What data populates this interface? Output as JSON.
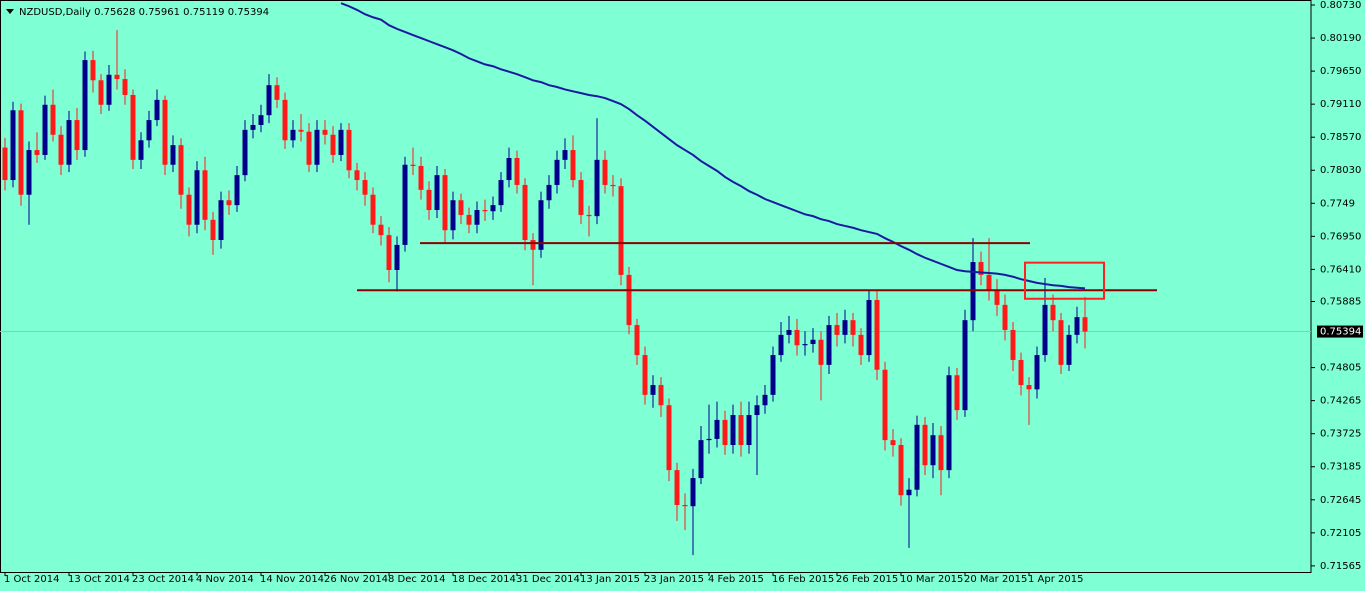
{
  "chart_data": {
    "type": "candlestick",
    "title": "NZDUSD,Daily",
    "background": "#7fffd4",
    "up_color": "#00008b",
    "down_color": "#ff1a1a",
    "categories": [
      "1 Oct 2014",
      null,
      null,
      null,
      null,
      null,
      null,
      null,
      "13 Oct 2014",
      null,
      null,
      null,
      null,
      null,
      null,
      null,
      "23 Oct 2014",
      null,
      null,
      null,
      null,
      null,
      null,
      null,
      "4 Nov 2014",
      null,
      null,
      null,
      null,
      null,
      null,
      null,
      "14 Nov 2014",
      null,
      null,
      null,
      null,
      null,
      null,
      null,
      "26 Nov 2014",
      null,
      null,
      null,
      null,
      null,
      null,
      null,
      "8 Dec 2014",
      null,
      null,
      null,
      null,
      null,
      null,
      null,
      "18 Dec 2014",
      null,
      null,
      null,
      null,
      null,
      null,
      null,
      "31 Dec 2014",
      null,
      null,
      null,
      null,
      null,
      null,
      null,
      "13 Jan 2015",
      null,
      null,
      null,
      null,
      null,
      null,
      null,
      "23 Jan 2015",
      null,
      null,
      null,
      null,
      null,
      null,
      null,
      "4 Feb 2015",
      null,
      null,
      null,
      null,
      null,
      null,
      null,
      "16 Feb 2015",
      null,
      null,
      null,
      null,
      null,
      null,
      null,
      "26 Feb 2015",
      null,
      null,
      null,
      null,
      null,
      null,
      null,
      "10 Mar 2015",
      null,
      null,
      null,
      null,
      null,
      null,
      null,
      "20 Mar 2015",
      null,
      null,
      null,
      null,
      null,
      null,
      null,
      "1 Apr 2015",
      null,
      null,
      null,
      null,
      null,
      null,
      null
    ],
    "open": [
      0.784,
      0.7787,
      0.7901,
      0.7763,
      0.7836,
      0.7828,
      0.791,
      0.7861,
      0.7812,
      0.7885,
      0.7836,
      0.7983,
      0.795,
      0.791,
      0.7959,
      0.7952,
      0.7926,
      0.782,
      0.7852,
      0.7885,
      0.7918,
      0.7812,
      0.7844,
      0.7763,
      0.7714,
      0.7803,
      0.7722,
      0.7689,
      0.7754,
      0.7746,
      0.7795,
      0.7869,
      0.7877,
      0.7893,
      0.7942,
      0.7918,
      0.7852,
      0.7869,
      0.7866,
      0.7812,
      0.7869,
      0.7861,
      0.7828,
      0.7869,
      0.7803,
      0.7787,
      0.7763,
      0.7714,
      0.7697,
      0.764,
      0.7681,
      0.7812,
      0.781,
      0.7771,
      0.7738,
      0.7795,
      0.7705,
      0.7754,
      0.773,
      0.7714,
      0.7738,
      0.7736,
      0.7746,
      0.7787,
      0.7823,
      0.7779,
      0.7689,
      0.7673,
      0.7754,
      0.7779,
      0.782,
      0.7836,
      0.7787,
      0.773,
      0.7728,
      0.782,
      0.7779,
      0.7777,
      0.7632,
      0.755,
      0.7501,
      0.7436,
      0.7452,
      0.7419,
      0.7313,
      0.7256,
      0.7254,
      0.73,
      0.7362,
      0.7364,
      0.7395,
      0.7354,
      0.7403,
      0.7354,
      0.7403,
      0.7419,
      0.7436,
      0.7501,
      0.7534,
      0.7542,
      0.7517,
      0.7519,
      0.7526,
      0.7485,
      0.755,
      0.7534,
      0.7558,
      0.7534,
      0.7501,
      0.7591,
      0.7477,
      0.7362,
      0.7354,
      0.7272,
      0.7281,
      0.7387,
      0.7321,
      0.737,
      0.7313,
      0.7468,
      0.7411,
      0.7558,
      0.7653,
      0.7632,
      0.7607,
      0.7583,
      0.7542,
      0.7493,
      0.7452,
      0.7445,
      0.7501,
      0.7583,
      0.7558,
      0.7485,
      0.7534,
      0.75628
    ],
    "high": [
      0.7856,
      0.7915,
      0.7912,
      0.785,
      0.7865,
      0.7925,
      0.7935,
      0.7875,
      0.79,
      0.7905,
      0.7997,
      0.7998,
      0.796,
      0.7975,
      0.8032,
      0.7968,
      0.7935,
      0.7865,
      0.79,
      0.7935,
      0.7925,
      0.786,
      0.7855,
      0.7775,
      0.7818,
      0.7825,
      0.7735,
      0.7768,
      0.777,
      0.781,
      0.7885,
      0.7895,
      0.791,
      0.796,
      0.7955,
      0.793,
      0.7885,
      0.7895,
      0.788,
      0.7885,
      0.7885,
      0.7875,
      0.788,
      0.788,
      0.7815,
      0.78,
      0.7775,
      0.7728,
      0.771,
      0.7695,
      0.7825,
      0.784,
      0.7825,
      0.7785,
      0.781,
      0.7805,
      0.7768,
      0.7765,
      0.7742,
      0.7752,
      0.7755,
      0.776,
      0.78,
      0.784,
      0.7835,
      0.779,
      0.77,
      0.7768,
      0.7795,
      0.7835,
      0.7855,
      0.786,
      0.78,
      0.7745,
      0.7888,
      0.7835,
      0.7795,
      0.779,
      0.7645,
      0.756,
      0.7515,
      0.7468,
      0.7465,
      0.743,
      0.7325,
      0.7275,
      0.7315,
      0.7385,
      0.742,
      0.7425,
      0.741,
      0.742,
      0.7425,
      0.7425,
      0.7435,
      0.7452,
      0.7515,
      0.7555,
      0.7565,
      0.756,
      0.754,
      0.7545,
      0.754,
      0.7565,
      0.757,
      0.7575,
      0.757,
      0.7545,
      0.7607,
      0.7605,
      0.749,
      0.738,
      0.7365,
      0.73,
      0.7402,
      0.74,
      0.739,
      0.7385,
      0.7482,
      0.748,
      0.7575,
      0.7692,
      0.767,
      0.7692,
      0.7625,
      0.76,
      0.7555,
      0.7505,
      0.7465,
      0.7515,
      0.7627,
      0.76,
      0.757,
      0.755,
      0.758,
      0.75961
    ],
    "low": [
      0.777,
      0.7775,
      0.7745,
      0.7714,
      0.7815,
      0.782,
      0.785,
      0.7795,
      0.78,
      0.782,
      0.7825,
      0.793,
      0.7895,
      0.79,
      0.7935,
      0.791,
      0.7805,
      0.7805,
      0.784,
      0.7875,
      0.7795,
      0.78,
      0.774,
      0.7695,
      0.77,
      0.7705,
      0.7665,
      0.7675,
      0.773,
      0.7735,
      0.7785,
      0.7855,
      0.7865,
      0.788,
      0.7905,
      0.7838,
      0.784,
      0.785,
      0.78,
      0.78,
      0.7845,
      0.7815,
      0.7818,
      0.779,
      0.777,
      0.7745,
      0.77,
      0.768,
      0.762,
      0.7605,
      0.767,
      0.7795,
      0.7755,
      0.7722,
      0.7725,
      0.7685,
      0.769,
      0.7715,
      0.77,
      0.77,
      0.772,
      0.7722,
      0.7735,
      0.7775,
      0.7765,
      0.7672,
      0.7615,
      0.766,
      0.774,
      0.7765,
      0.7805,
      0.7775,
      0.7715,
      0.7695,
      0.7715,
      0.7765,
      0.776,
      0.7615,
      0.7535,
      0.7485,
      0.742,
      0.7415,
      0.74,
      0.7295,
      0.723,
      0.7215,
      0.7174,
      0.729,
      0.734,
      0.735,
      0.7338,
      0.734,
      0.7335,
      0.734,
      0.7305,
      0.7405,
      0.7425,
      0.749,
      0.752,
      0.75,
      0.75,
      0.7505,
      0.7427,
      0.747,
      0.7515,
      0.752,
      0.7515,
      0.7485,
      0.749,
      0.746,
      0.7345,
      0.7335,
      0.7255,
      0.7186,
      0.727,
      0.7305,
      0.73,
      0.7272,
      0.73,
      0.7395,
      0.74,
      0.754,
      0.7615,
      0.759,
      0.7565,
      0.7525,
      0.7475,
      0.7435,
      0.7387,
      0.743,
      0.749,
      0.754,
      0.747,
      0.7475,
      0.752,
      0.75119
    ],
    "close": [
      0.7787,
      0.7901,
      0.7763,
      0.7836,
      0.7828,
      0.791,
      0.7861,
      0.7812,
      0.7885,
      0.7836,
      0.7983,
      0.795,
      0.791,
      0.7959,
      0.7952,
      0.7926,
      0.782,
      0.7852,
      0.7885,
      0.7918,
      0.7812,
      0.7844,
      0.7763,
      0.7714,
      0.7803,
      0.7722,
      0.7689,
      0.7754,
      0.7746,
      0.7795,
      0.7869,
      0.7877,
      0.7893,
      0.7942,
      0.7918,
      0.7852,
      0.7869,
      0.7866,
      0.7812,
      0.7869,
      0.7861,
      0.7828,
      0.7869,
      0.7803,
      0.7787,
      0.7763,
      0.7714,
      0.7697,
      0.764,
      0.7681,
      0.7812,
      0.781,
      0.7771,
      0.7738,
      0.7795,
      0.7705,
      0.7754,
      0.773,
      0.7714,
      0.7738,
      0.7736,
      0.7746,
      0.7787,
      0.7823,
      0.7779,
      0.7689,
      0.7673,
      0.7754,
      0.7779,
      0.782,
      0.7836,
      0.7787,
      0.773,
      0.7728,
      0.782,
      0.7779,
      0.7777,
      0.7632,
      0.755,
      0.7501,
      0.7436,
      0.7452,
      0.7419,
      0.7313,
      0.7256,
      0.7254,
      0.73,
      0.7362,
      0.7364,
      0.7395,
      0.7354,
      0.7403,
      0.7354,
      0.7403,
      0.7419,
      0.7436,
      0.7501,
      0.7534,
      0.7542,
      0.7517,
      0.7519,
      0.7526,
      0.7485,
      0.755,
      0.7534,
      0.7558,
      0.7534,
      0.7501,
      0.7591,
      0.7477,
      0.7362,
      0.7354,
      0.7272,
      0.7281,
      0.7387,
      0.7321,
      0.737,
      0.7313,
      0.7468,
      0.7411,
      0.7558,
      0.7653,
      0.7632,
      0.7607,
      0.7583,
      0.7542,
      0.7493,
      0.7452,
      0.7445,
      0.7501,
      0.7583,
      0.7558,
      0.7485,
      0.7534,
      0.7563,
      0.75394
    ],
    "moving_average": {
      "color": "#1a1aa0",
      "values": [
        null,
        null,
        null,
        null,
        null,
        null,
        null,
        null,
        null,
        null,
        null,
        null,
        null,
        null,
        null,
        null,
        null,
        null,
        null,
        null,
        null,
        null,
        null,
        null,
        null,
        null,
        null,
        null,
        null,
        null,
        null,
        null,
        null,
        null,
        null,
        null,
        null,
        null,
        null,
        null,
        null,
        null,
        0.8076,
        0.8071,
        0.8065,
        0.8058,
        0.8053,
        0.8049,
        0.804,
        0.8034,
        0.8029,
        0.8024,
        0.8019,
        0.8014,
        0.8009,
        0.8004,
        0.7999,
        0.7993,
        0.7986,
        0.7981,
        0.7976,
        0.7973,
        0.7968,
        0.7964,
        0.796,
        0.7955,
        0.795,
        0.7947,
        0.7942,
        0.7939,
        0.7935,
        0.7932,
        0.7929,
        0.7926,
        0.7924,
        0.7921,
        0.7916,
        0.7911,
        0.7903,
        0.7893,
        0.7884,
        0.7874,
        0.7864,
        0.7854,
        0.7844,
        0.7836,
        0.7828,
        0.7818,
        0.781,
        0.7802,
        0.7792,
        0.7784,
        0.7777,
        0.7769,
        0.7763,
        0.7756,
        0.7751,
        0.7746,
        0.7741,
        0.7736,
        0.7731,
        0.7728,
        0.7723,
        0.772,
        0.7715,
        0.7712,
        0.7709,
        0.7705,
        0.7702,
        0.7699,
        0.7692,
        0.7686,
        0.7679,
        0.7673,
        0.7666,
        0.766,
        0.7655,
        0.765,
        0.7645,
        0.764,
        0.7638,
        0.7637,
        0.7636,
        0.7635,
        0.7634,
        0.7632,
        0.7629,
        0.7625,
        0.7622,
        0.7619,
        0.7617,
        0.7615,
        0.7614,
        0.7612,
        0.7611,
        0.761
      ]
    },
    "levels": [
      {
        "value": 0.7684,
        "color": "#8b0000"
      },
      {
        "value": 0.7607,
        "color": "#8b0000"
      }
    ],
    "zone": {
      "ylim": [
        0.7593,
        0.7652
      ],
      "color": "#ff2020"
    },
    "current_price_color": "#e8a0a8",
    "ylim": [
      0.71465,
      0.80812
    ],
    "yticks": [
      {
        "value": 0.8073,
        "label": "0.80730"
      },
      {
        "value": 0.8019,
        "label": "0.80190"
      },
      {
        "value": 0.7965,
        "label": "0.79650"
      },
      {
        "value": 0.7911,
        "label": "0.79110"
      },
      {
        "value": 0.7857,
        "label": "0.78570"
      },
      {
        "value": 0.7803,
        "label": "0.78030"
      },
      0.7749,
      {
        "value": 0.7695,
        "label": "0.76950"
      },
      {
        "value": 0.7641,
        "label": "0.76410"
      },
      0.75885,
      0.74805,
      0.74265,
      0.73725,
      0.73185,
      0.72645,
      0.72105,
      0.71565
    ]
  }
}
